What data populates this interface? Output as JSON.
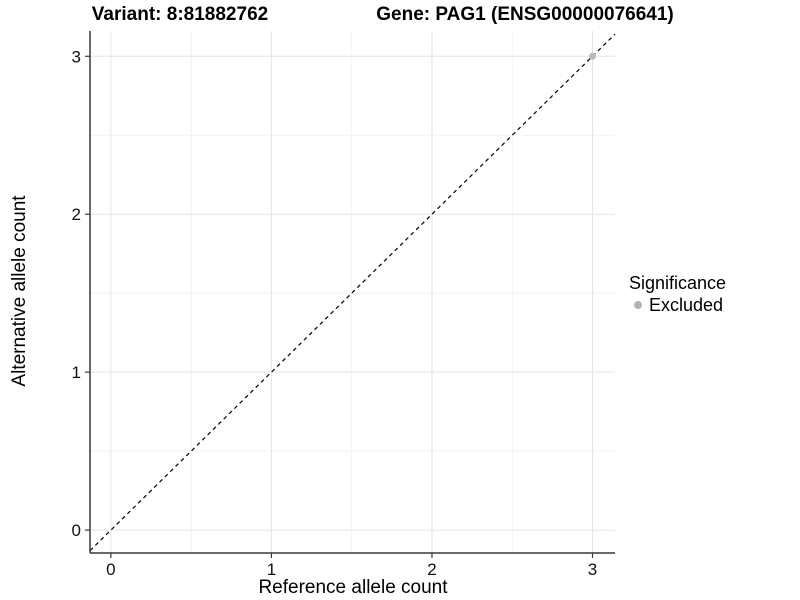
{
  "chart_data": {
    "type": "scatter",
    "title_left": "Variant: 8:81882762",
    "title_right": "Gene: PAG1 (ENSG00000076641)",
    "xlabel": "Reference allele count",
    "ylabel": "Alternative allele count",
    "xlim": [
      -0.13,
      3.14
    ],
    "ylim": [
      -0.145,
      3.16
    ],
    "xticks": [
      0,
      1,
      2,
      3
    ],
    "yticks": [
      0,
      1,
      2,
      3
    ],
    "x_minor_ticks": [
      0.5,
      1.5,
      2.5
    ],
    "y_minor_ticks": [
      0.5,
      1.5,
      2.5
    ],
    "grid": "on",
    "identity_line": {
      "slope": 1,
      "intercept": 0,
      "style": "dashed",
      "color": "#000000"
    },
    "series": [
      {
        "name": "Excluded",
        "color": "#b9b9b9",
        "points": [
          [
            3,
            3
          ]
        ]
      }
    ],
    "legend": {
      "position": "right",
      "title": "Significance",
      "entries": [
        {
          "label": "Excluded",
          "color": "#b3b3b3"
        }
      ]
    },
    "colors": {
      "background": "#ffffff",
      "major_grid": "#e4e4e4",
      "minor_grid": "#f2f2f2",
      "axis_line": "#383838",
      "tick_mark": "#383838",
      "tick_label": "#111111"
    }
  }
}
